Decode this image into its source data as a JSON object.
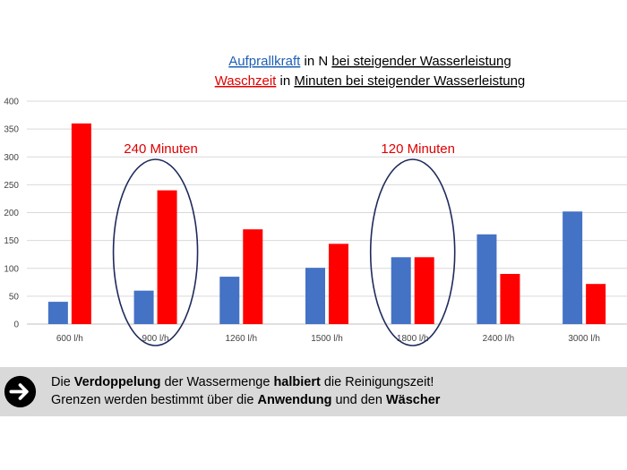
{
  "chart_data": {
    "type": "bar",
    "title_lines": [
      [
        {
          "text": "Aufprallkraft",
          "color": "#1f5fb4",
          "underline": true
        },
        {
          "text": " in N ",
          "color": "#000000",
          "underline": false
        },
        {
          "text": "bei steigender Wasserleistung",
          "color": "#000000",
          "underline": true
        }
      ],
      [
        {
          "text": "Waschzeit",
          "color": "#e00000",
          "underline": true
        },
        {
          "text": " in ",
          "color": "#000000",
          "underline": false
        },
        {
          "text": "Minuten bei steigender Wasserleistung",
          "color": "#000000",
          "underline": true
        }
      ]
    ],
    "categories": [
      "600 l/h",
      "900 l/h",
      "1260 l/h",
      "1500 l/h",
      "1800 l/h",
      "2400 l/h",
      "3000 l/h"
    ],
    "series": [
      {
        "values": [
          40,
          60,
          85,
          101,
          120,
          161,
          202
        ],
        "color": "#4472c4"
      },
      {
        "values": [
          360,
          240,
          170,
          144,
          120,
          90,
          72
        ],
        "color": "#ff0000"
      }
    ],
    "ylim": [
      0,
      400
    ],
    "yticks": [
      0,
      50,
      100,
      150,
      200,
      250,
      300,
      350,
      400
    ],
    "grid": true,
    "annotations": [
      {
        "text": "240 Minuten",
        "category_index": 1,
        "color": "#e00000"
      },
      {
        "text": "120 Minuten",
        "category_index": 4,
        "color": "#e00000"
      }
    ]
  },
  "banner": {
    "icon": "arrow-right-circle-icon",
    "line1": [
      {
        "text": "Die ",
        "bold": false
      },
      {
        "text": "Verdoppelung",
        "bold": true
      },
      {
        "text": " der Wassermenge ",
        "bold": false
      },
      {
        "text": "halbiert",
        "bold": true
      },
      {
        "text": " die Reinigungszeit!",
        "bold": false
      }
    ],
    "line2": [
      {
        "text": "Grenzen werden bestimmt über die ",
        "bold": false
      },
      {
        "text": "Anwendung",
        "bold": true
      },
      {
        "text": " und den ",
        "bold": false
      },
      {
        "text": "Wäscher",
        "bold": true
      }
    ]
  }
}
